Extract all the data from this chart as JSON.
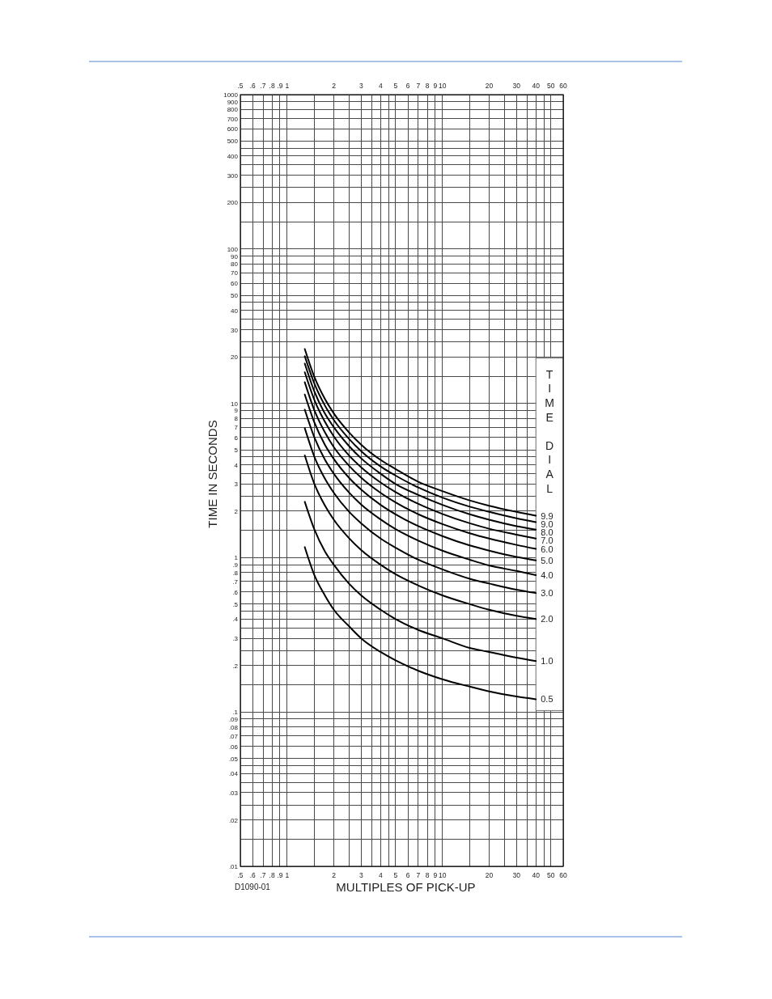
{
  "chart_data": {
    "type": "line",
    "xlabel": "MULTIPLES OF PICK-UP",
    "ylabel": "TIME IN SECONDS",
    "legend_title": "TIME DIAL",
    "annotations": [
      "D1090-01"
    ],
    "log": "xy",
    "grid": true,
    "xlim": [
      0.5,
      60
    ],
    "xticks": [
      {
        "value": 0.5,
        "label": ".5"
      },
      {
        "value": 0.6,
        "label": ".6"
      },
      {
        "value": 0.7,
        "label": ".7"
      },
      {
        "value": 0.8,
        "label": ".8"
      },
      {
        "value": 0.9,
        "label": ".9"
      },
      {
        "value": 1,
        "label": "1"
      },
      {
        "value": 1.5,
        "label": null
      },
      {
        "value": 2,
        "label": "2"
      },
      {
        "value": 2.5,
        "label": null
      },
      {
        "value": 3,
        "label": "3"
      },
      {
        "value": 3.5,
        "label": null
      },
      {
        "value": 4,
        "label": "4"
      },
      {
        "value": 4.5,
        "label": null
      },
      {
        "value": 5,
        "label": "5"
      },
      {
        "value": 6,
        "label": "6"
      },
      {
        "value": 7,
        "label": "7"
      },
      {
        "value": 8,
        "label": "8"
      },
      {
        "value": 9,
        "label": "9"
      },
      {
        "value": 10,
        "label": "10"
      },
      {
        "value": 15,
        "label": null
      },
      {
        "value": 20,
        "label": "20"
      },
      {
        "value": 25,
        "label": null
      },
      {
        "value": 30,
        "label": "30"
      },
      {
        "value": 35,
        "label": null
      },
      {
        "value": 40,
        "label": "40"
      },
      {
        "value": 45,
        "label": null
      },
      {
        "value": 50,
        "label": "50"
      },
      {
        "value": 60,
        "label": "60"
      }
    ],
    "ylim": [
      0.01,
      1000
    ],
    "yticks": [
      {
        "value": 0.01,
        "label": ".01"
      },
      {
        "value": 0.015,
        "label": null
      },
      {
        "value": 0.02,
        "label": ".02"
      },
      {
        "value": 0.025,
        "label": null
      },
      {
        "value": 0.03,
        "label": ".03"
      },
      {
        "value": 0.035,
        "label": null
      },
      {
        "value": 0.04,
        "label": ".04"
      },
      {
        "value": 0.045,
        "label": null
      },
      {
        "value": 0.05,
        "label": ".05"
      },
      {
        "value": 0.06,
        "label": ".06"
      },
      {
        "value": 0.07,
        "label": ".07"
      },
      {
        "value": 0.08,
        "label": ".08"
      },
      {
        "value": 0.09,
        "label": ".09"
      },
      {
        "value": 0.1,
        "label": ".1"
      },
      {
        "value": 0.15,
        "label": null
      },
      {
        "value": 0.2,
        "label": ".2"
      },
      {
        "value": 0.25,
        "label": null
      },
      {
        "value": 0.3,
        "label": ".3"
      },
      {
        "value": 0.35,
        "label": null
      },
      {
        "value": 0.4,
        "label": ".4"
      },
      {
        "value": 0.45,
        "label": null
      },
      {
        "value": 0.5,
        "label": ".5"
      },
      {
        "value": 0.6,
        "label": ".6"
      },
      {
        "value": 0.7,
        "label": ".7"
      },
      {
        "value": 0.8,
        "label": ".8"
      },
      {
        "value": 0.9,
        "label": ".9"
      },
      1,
      {
        "value": 1.5,
        "label": null
      },
      2,
      {
        "value": 2.5,
        "label": null
      },
      3,
      {
        "value": 3.5,
        "label": null
      },
      4,
      {
        "value": 4.5,
        "label": null
      },
      5,
      6,
      7,
      8,
      9,
      10,
      {
        "value": 15,
        "label": null
      },
      20,
      {
        "value": 25,
        "label": null
      },
      30,
      {
        "value": 35,
        "label": null
      },
      40,
      {
        "value": 45,
        "label": null
      },
      50,
      60,
      70,
      80,
      90,
      100,
      {
        "value": 150,
        "label": null
      },
      200,
      {
        "value": 250,
        "label": null
      },
      300,
      {
        "value": 350,
        "label": null
      },
      400,
      {
        "value": 450,
        "label": null
      },
      500,
      600,
      700,
      800,
      900,
      1000
    ],
    "x": [
      1.3,
      1.5,
      1.75,
      2,
      2.5,
      3,
      4,
      5,
      7,
      10,
      15,
      20,
      30,
      40
    ],
    "series": [
      {
        "name": "9.9",
        "color": "#000000",
        "values": [
          22.5,
          14.8,
          10.7,
          8.6,
          6.5,
          5.4,
          4.3,
          3.75,
          3.1,
          2.7,
          2.35,
          2.17,
          1.98,
          1.87
        ]
      },
      {
        "name": "9.0",
        "color": "#000000",
        "values": [
          20.2,
          13.4,
          9.7,
          7.8,
          5.9,
          4.9,
          3.9,
          3.4,
          2.85,
          2.45,
          2.14,
          1.98,
          1.8,
          1.7
        ]
      },
      {
        "name": "8.0",
        "color": "#000000",
        "values": [
          18.1,
          11.9,
          8.6,
          7.0,
          5.3,
          4.4,
          3.5,
          3.0,
          2.55,
          2.2,
          1.91,
          1.76,
          1.6,
          1.52
        ]
      },
      {
        "name": "7.0",
        "color": "#000000",
        "values": [
          15.9,
          10.5,
          7.6,
          6.1,
          4.6,
          3.85,
          3.07,
          2.66,
          2.23,
          1.92,
          1.67,
          1.54,
          1.41,
          1.33
        ]
      },
      {
        "name": "6.0",
        "color": "#000000",
        "values": [
          13.7,
          9.0,
          6.5,
          5.2,
          3.95,
          3.3,
          2.63,
          2.28,
          1.91,
          1.65,
          1.44,
          1.33,
          1.21,
          1.14
        ]
      },
      {
        "name": "5.0",
        "color": "#000000",
        "values": [
          11.4,
          7.5,
          5.4,
          4.36,
          3.3,
          2.76,
          2.2,
          1.91,
          1.6,
          1.38,
          1.2,
          1.11,
          1.01,
          0.96
        ]
      },
      {
        "name": "4.0",
        "color": "#000000",
        "values": [
          9.1,
          6.0,
          4.33,
          3.5,
          2.65,
          2.21,
          1.77,
          1.53,
          1.29,
          1.11,
          0.97,
          0.89,
          0.82,
          0.77
        ]
      },
      {
        "name": "3.0",
        "color": "#000000",
        "values": [
          6.9,
          4.5,
          3.26,
          2.63,
          1.99,
          1.67,
          1.33,
          1.16,
          0.97,
          0.84,
          0.73,
          0.68,
          0.62,
          0.59
        ]
      },
      {
        "name": "2.0",
        "color": "#000000",
        "values": [
          4.6,
          3.0,
          2.18,
          1.76,
          1.34,
          1.12,
          0.9,
          0.78,
          0.66,
          0.57,
          0.5,
          0.46,
          0.42,
          0.4
        ]
      },
      {
        "name": "1.0",
        "color": "#000000",
        "values": [
          2.3,
          1.52,
          1.1,
          0.9,
          0.68,
          0.57,
          0.46,
          0.4,
          0.34,
          0.3,
          0.26,
          0.245,
          0.225,
          0.214
        ]
      },
      {
        "name": "0.5",
        "color": "#000000",
        "values": [
          1.17,
          0.77,
          0.57,
          0.46,
          0.36,
          0.3,
          0.245,
          0.216,
          0.185,
          0.163,
          0.146,
          0.136,
          0.126,
          0.121
        ]
      }
    ]
  }
}
